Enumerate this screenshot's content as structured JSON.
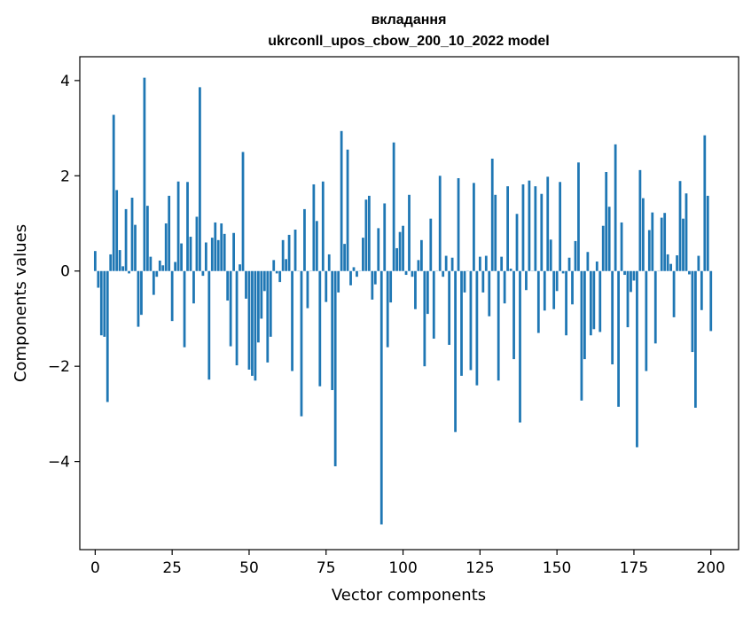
{
  "chart_data": {
    "type": "bar",
    "title": "вкладання",
    "subtitle": "ukrconll_upos_cbow_200_10_2022 model",
    "xlabel": "Vector components",
    "ylabel": "Components values",
    "xlim": [
      -5,
      209
    ],
    "ylim": [
      -5.85,
      4.5
    ],
    "xticks": [
      0,
      25,
      50,
      75,
      100,
      125,
      150,
      175,
      200
    ],
    "yticks": [
      -4,
      -2,
      0,
      2,
      4
    ],
    "xtick_labels": [
      "0",
      "25",
      "50",
      "75",
      "100",
      "125",
      "150",
      "175",
      "200"
    ],
    "ytick_labels": [
      "−4",
      "−2",
      "0",
      "2",
      "4"
    ],
    "grid": false,
    "bar_color": "#1f77b4",
    "values": [
      0.42,
      -0.35,
      -1.35,
      -1.38,
      -2.75,
      0.35,
      3.28,
      1.7,
      0.44,
      0.1,
      1.3,
      -0.05,
      1.54,
      0.97,
      -1.17,
      -0.92,
      4.06,
      1.37,
      0.3,
      -0.5,
      -0.12,
      0.22,
      0.12,
      1.0,
      1.58,
      -1.05,
      0.19,
      1.88,
      0.58,
      -1.6,
      1.87,
      0.72,
      -0.68,
      1.14,
      3.86,
      -0.1,
      0.6,
      -2.28,
      0.7,
      1.02,
      0.65,
      1.0,
      0.78,
      -0.62,
      -1.58,
      0.8,
      -1.98,
      0.14,
      2.5,
      -0.58,
      -2.07,
      -2.2,
      -2.3,
      -1.5,
      -1.0,
      -0.42,
      -1.92,
      -1.38,
      0.23,
      -0.05,
      -0.23,
      0.65,
      0.25,
      0.76,
      -2.1,
      0.87,
      0.0,
      -3.05,
      1.3,
      -0.78,
      0.0,
      1.82,
      1.05,
      -2.42,
      1.88,
      -0.65,
      0.35,
      -2.5,
      -4.1,
      -0.45,
      2.94,
      0.57,
      2.55,
      -0.3,
      0.08,
      -0.12,
      0.0,
      0.7,
      1.5,
      1.58,
      -0.6,
      -0.28,
      0.9,
      -5.32,
      1.42,
      -1.6,
      -0.66,
      2.7,
      0.48,
      0.82,
      0.95,
      -0.08,
      1.6,
      -0.12,
      -0.8,
      0.23,
      0.65,
      -2.0,
      -0.9,
      1.1,
      -1.42,
      0.0,
      2.0,
      -0.12,
      0.32,
      -1.55,
      0.28,
      -3.38,
      1.95,
      -2.2,
      -0.45,
      0.0,
      -2.08,
      1.85,
      -2.4,
      0.3,
      -0.45,
      0.32,
      -0.95,
      2.36,
      1.6,
      -2.3,
      0.3,
      -0.68,
      1.78,
      0.05,
      -1.85,
      1.2,
      -3.18,
      1.82,
      -0.4,
      1.9,
      0.0,
      1.78,
      -1.3,
      1.62,
      -0.83,
      1.98,
      0.66,
      -0.8,
      -0.42,
      1.87,
      -0.05,
      -1.35,
      0.28,
      -0.7,
      0.63,
      2.28,
      -2.72,
      -1.85,
      0.4,
      -1.35,
      -1.22,
      0.2,
      -1.28,
      0.95,
      2.08,
      1.35,
      -1.96,
      2.66,
      -2.85,
      1.02,
      -0.08,
      -1.18,
      -0.44,
      -0.2,
      -3.7,
      2.12,
      1.53,
      -2.1,
      0.86,
      1.23,
      -1.52,
      0.0,
      1.12,
      1.22,
      0.35,
      0.15,
      -0.97,
      0.33,
      1.89,
      1.1,
      1.63,
      -0.07,
      -1.7,
      -2.87,
      0.32,
      -0.82,
      2.85,
      1.58,
      -1.26
    ]
  }
}
